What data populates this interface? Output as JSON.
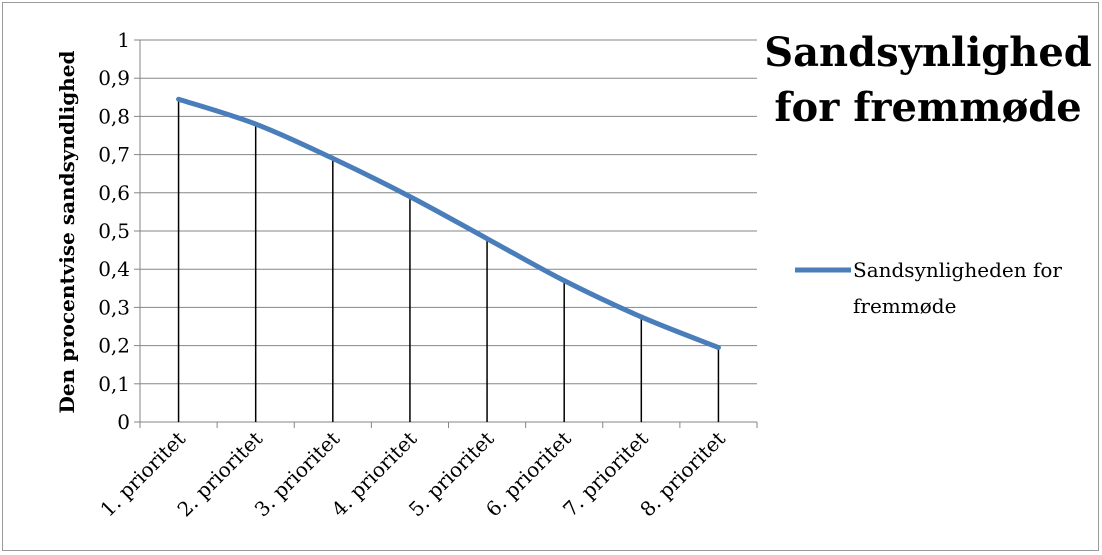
{
  "chart_data": {
    "type": "line",
    "title_lines": [
      "Sandsynlighed",
      "for fremmøde"
    ],
    "ylabel": "Den procentvise sandsyndlighed",
    "xlabel": "",
    "categories": [
      "1. prioritet",
      "2. prioritet",
      "3. prioritet",
      "4. prioritet",
      "5. prioritet",
      "6. prioritet",
      "7. prioritet",
      "8. prioritet"
    ],
    "series": [
      {
        "name": "Sandsynligheden for fremmøde",
        "legend_lines": [
          "Sandsynligheden for",
          "fremmøde"
        ],
        "values": [
          0.845,
          0.78,
          0.69,
          0.59,
          0.48,
          0.37,
          0.275,
          0.195
        ],
        "color": "#4a7ebb"
      }
    ],
    "ylim": [
      0,
      1
    ],
    "yticks": [
      "0",
      "0,1",
      "0,2",
      "0,3",
      "0,4",
      "0,5",
      "0,6",
      "0,7",
      "0,8",
      "0,9",
      "1"
    ],
    "grid": true,
    "drop_lines": true,
    "legend_position": "right"
  }
}
